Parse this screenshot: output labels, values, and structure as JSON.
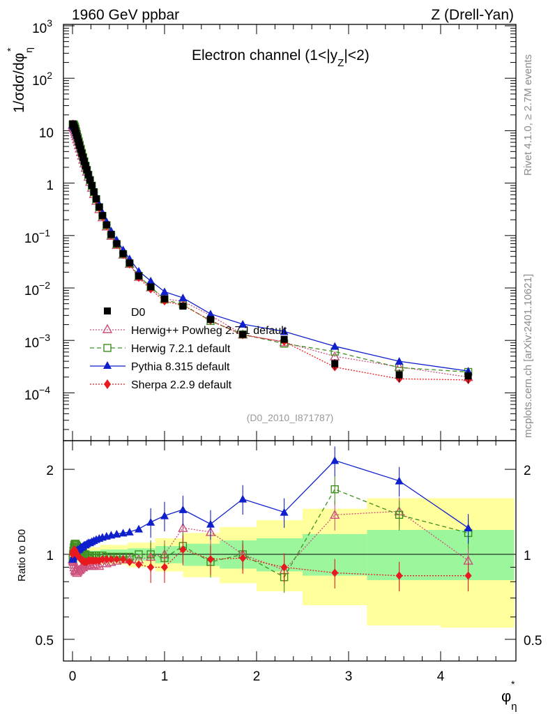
{
  "header": {
    "left": "1960 GeV ppbar",
    "right": "Z (Drell-Yan)"
  },
  "side_text": {
    "rivet": "Rivet 4.1.0, ≥ 2.7M events",
    "site": "mcplots.cern.ch [arXiv:2401.10621]"
  },
  "chart_data": {
    "type": "line",
    "title": "Electron channel (1<|y_Z|<2)",
    "title_main": "Electron channel (1<|y",
    "title_sub": "Z",
    "title_end": "|<2)",
    "analysis_tag": "(D0_2010_I871787)",
    "xlabel": "φ*_η",
    "xlabel_main": "φ",
    "xlabel_sup": "*",
    "xlabel_sub": "η",
    "ylabel": "1/σdσ/dφ*_η",
    "ylabel_main": "1/σdσ/dφ",
    "ylabel_sup": "*",
    "ylabel_sub": "η",
    "ratio_ylabel": "Ratio to D0",
    "xlim": [
      -0.1,
      4.8
    ],
    "ylim": [
      2e-05,
      1000
    ],
    "ratio_ylim": [
      0.4,
      2.3
    ],
    "x_ticks": [
      "0",
      "1",
      "2",
      "3",
      "4"
    ],
    "y_ticks": [
      {
        "base": "10",
        "exp": "3"
      },
      {
        "base": "10",
        "exp": "2"
      },
      {
        "base": "10",
        "exp": ""
      },
      {
        "base": "1",
        "exp": ""
      },
      {
        "base": "10",
        "exp": "−1"
      },
      {
        "base": "10",
        "exp": "−2"
      },
      {
        "base": "10",
        "exp": "−3"
      },
      {
        "base": "10",
        "exp": "−4"
      }
    ],
    "ratio_ticks": [
      "2",
      "1",
      "0.5"
    ],
    "x": [
      0.002,
      0.006,
      0.01,
      0.015,
      0.02,
      0.026,
      0.032,
      0.04,
      0.048,
      0.058,
      0.068,
      0.078,
      0.09,
      0.102,
      0.115,
      0.128,
      0.142,
      0.156,
      0.172,
      0.19,
      0.21,
      0.232,
      0.258,
      0.29,
      0.325,
      0.37,
      0.42,
      0.48,
      0.55,
      0.62,
      0.72,
      0.85,
      1.0,
      1.2,
      1.5,
      1.85,
      2.3,
      2.85,
      3.55,
      4.3
    ],
    "series": [
      {
        "name": "D0",
        "color": "#000000",
        "marker": "square",
        "values": [
          13.5,
          13.2,
          12.8,
          12.3,
          11.7,
          10.9,
          10.0,
          9.0,
          8.0,
          7.0,
          6.0,
          5.2,
          4.4,
          3.7,
          3.1,
          2.6,
          2.15,
          1.8,
          1.45,
          1.15,
          0.9,
          0.68,
          0.5,
          0.35,
          0.24,
          0.16,
          0.105,
          0.07,
          0.045,
          0.03,
          0.017,
          0.0105,
          0.0062,
          0.0045,
          0.0025,
          0.0013,
          0.00105,
          0.00036,
          0.00022,
          0.00021
        ],
        "errors": [
          0.5,
          0.5,
          0.5,
          0.5,
          0.5,
          0.5,
          0.4,
          0.4,
          0.3,
          0.3,
          0.3,
          0.2,
          0.2,
          0.2,
          0.15,
          0.12,
          0.1,
          0.08,
          0.07,
          0.05,
          0.04,
          0.03,
          0.02,
          0.015,
          0.01,
          0.007,
          0.005,
          0.003,
          0.002,
          0.0015,
          0.001,
          0.0006,
          0.0004,
          0.0003,
          0.00015,
          0.0001,
          0.0001,
          8e-05,
          6e-05,
          6e-05
        ]
      },
      {
        "name": "Herwig++ Powheg 2.7.1 default",
        "color": "#cc4f7c",
        "marker": "triangle-open",
        "line": "dotted",
        "ratio": [
          0.96,
          0.95,
          0.94,
          0.92,
          0.9,
          0.88,
          0.87,
          0.87,
          0.86,
          0.87,
          0.88,
          0.88,
          0.89,
          0.9,
          0.9,
          0.91,
          0.91,
          0.92,
          0.91,
          0.92,
          0.91,
          0.91,
          0.92,
          0.91,
          0.93,
          0.93,
          0.94,
          0.95,
          0.96,
          0.96,
          0.96,
          0.98,
          1.0,
          1.24,
          1.2,
          1.0,
          0.88,
          1.38,
          1.42,
          0.95
        ]
      },
      {
        "name": "Herwig 7.2.1 default",
        "color": "#3f8f1f",
        "marker": "square-open",
        "line": "dashed",
        "ratio": [
          0.97,
          1.0,
          1.03,
          1.06,
          1.08,
          1.09,
          1.09,
          1.08,
          1.07,
          1.06,
          1.05,
          1.04,
          1.03,
          1.02,
          1.01,
          1.0,
          1.0,
          0.99,
          0.99,
          0.99,
          0.99,
          0.99,
          0.99,
          0.99,
          0.99,
          0.98,
          0.98,
          0.98,
          0.98,
          0.98,
          1.0,
          1.0,
          0.97,
          1.07,
          0.94,
          1.0,
          0.83,
          1.7,
          1.38,
          1.19
        ]
      },
      {
        "name": "Pythia 8.315 default",
        "color": "#0f1fcc",
        "marker": "triangle",
        "line": "solid",
        "ratio": [
          0.96,
          0.97,
          0.98,
          0.99,
          1.0,
          1.01,
          1.02,
          1.03,
          1.03,
          1.04,
          1.04,
          1.05,
          1.06,
          1.06,
          1.07,
          1.08,
          1.08,
          1.09,
          1.1,
          1.1,
          1.11,
          1.12,
          1.13,
          1.14,
          1.15,
          1.16,
          1.17,
          1.18,
          1.19,
          1.2,
          1.23,
          1.3,
          1.37,
          1.44,
          1.28,
          1.57,
          1.41,
          2.15,
          1.82,
          1.24
        ]
      },
      {
        "name": "Sherpa 2.2.9 default",
        "color": "#e8191f",
        "marker": "diamond",
        "line": "dotted",
        "ratio": [
          1.0,
          1.02,
          1.03,
          1.03,
          1.04,
          1.03,
          1.02,
          1.01,
          1.0,
          0.99,
          0.98,
          0.97,
          0.96,
          0.95,
          0.95,
          0.94,
          0.94,
          0.94,
          0.95,
          0.95,
          0.95,
          0.95,
          0.95,
          0.95,
          0.96,
          0.96,
          0.96,
          0.96,
          0.96,
          0.94,
          0.92,
          0.9,
          0.9,
          1.04,
          0.96,
          0.97,
          0.9,
          0.86,
          0.84,
          0.84
        ]
      }
    ],
    "bands": {
      "edges": [
        0.0,
        0.3,
        0.6,
        0.9,
        1.2,
        1.6,
        2.0,
        2.5,
        3.2,
        4.0,
        4.8
      ],
      "inner": [
        [
          0.97,
          1.03
        ],
        [
          0.96,
          1.04
        ],
        [
          0.95,
          1.05
        ],
        [
          0.93,
          1.07
        ],
        [
          0.91,
          1.09
        ],
        [
          0.89,
          1.12
        ],
        [
          0.87,
          1.14
        ],
        [
          0.84,
          1.18
        ],
        [
          0.81,
          1.22
        ],
        [
          0.81,
          1.22
        ]
      ],
      "outer": [
        [
          0.94,
          1.06
        ],
        [
          0.92,
          1.08
        ],
        [
          0.9,
          1.1
        ],
        [
          0.87,
          1.14
        ],
        [
          0.83,
          1.19
        ],
        [
          0.79,
          1.25
        ],
        [
          0.74,
          1.32
        ],
        [
          0.66,
          1.45
        ],
        [
          0.56,
          1.58
        ],
        [
          0.55,
          1.58
        ]
      ],
      "inner_color": "#9cf79c",
      "outer_color": "#ffff9c"
    }
  }
}
